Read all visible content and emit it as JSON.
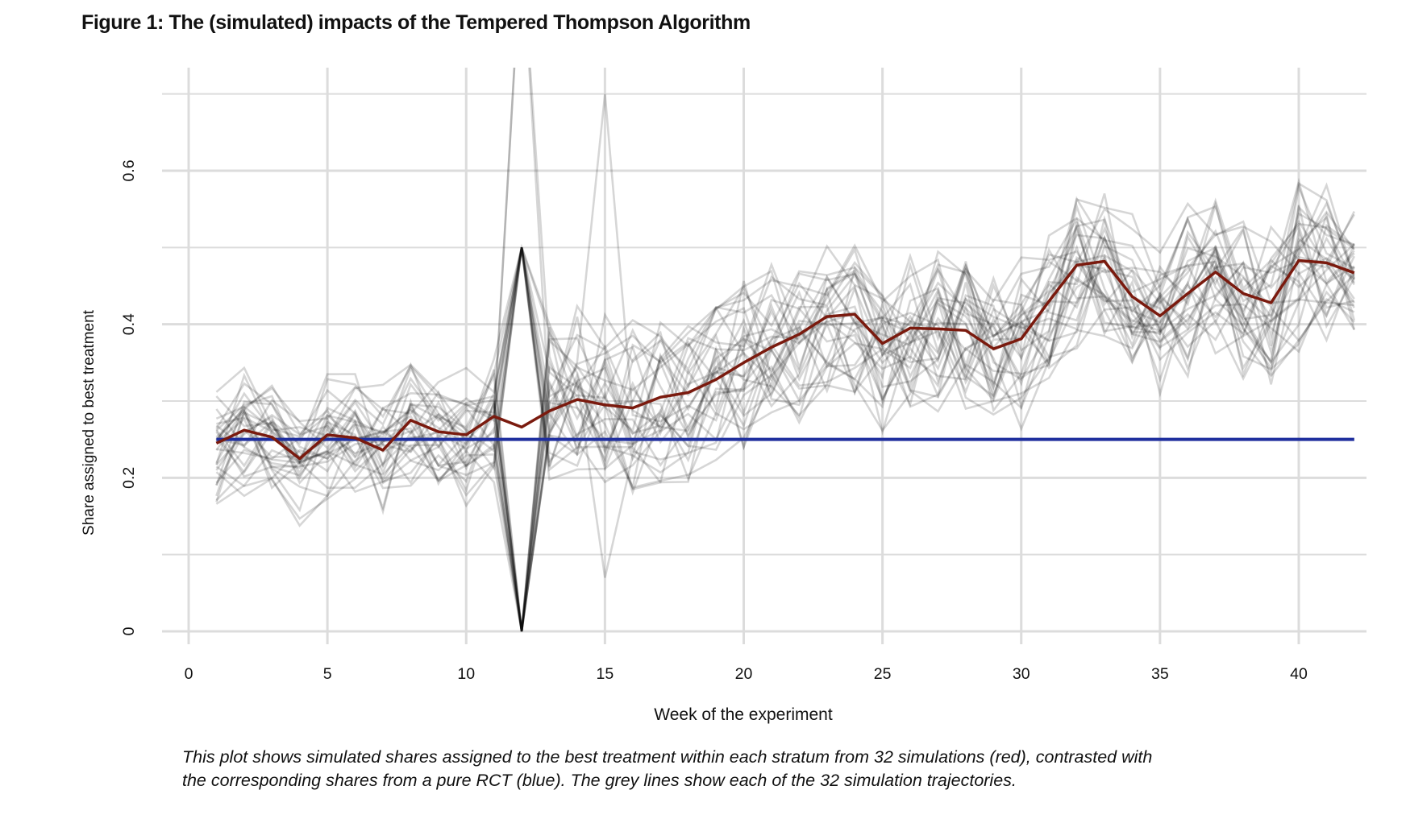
{
  "figure": {
    "title": "Figure 1: The (simulated) impacts of the Tempered Thompson Algorithm",
    "caption_lines": [
      "This plot shows simulated shares assigned to the best treatment within each stratum from 32 simulations (red), contrasted with",
      "the corresponding shares from a pure RCT (blue). The grey lines show each of the 32 simulation trajectories."
    ]
  },
  "chart_data": {
    "type": "line",
    "title": "Figure 1: The (simulated) impacts of the Tempered Thompson Algorithm",
    "xlabel": "Week of the experiment",
    "ylabel": "Share assigned to best treatment",
    "xlim": [
      -1,
      43.5
    ],
    "ylim": [
      -0.01,
      0.735
    ],
    "x_ticks": [
      0,
      5,
      10,
      15,
      20,
      25,
      30,
      35,
      40
    ],
    "x_tick_labels": [
      "0",
      "5",
      "10",
      "15",
      "20",
      "25",
      "30",
      "35",
      "40"
    ],
    "y_ticks": [
      0,
      0.2,
      0.4,
      0.6
    ],
    "y_tick_labels": [
      "0",
      "0.2",
      "0.4",
      "0.6"
    ],
    "y_minor_gridlines": [
      0.1,
      0.3,
      0.5,
      0.7
    ],
    "grid": true,
    "legend": "none",
    "colors": {
      "mean": "#7a1a0e",
      "rct": "#1f2f9e",
      "trajectory": "#000000",
      "grid": "#dcdcdc"
    },
    "x": [
      1,
      2,
      3,
      4,
      5,
      6,
      7,
      8,
      9,
      10,
      11,
      12,
      13,
      14,
      15,
      16,
      17,
      18,
      19,
      20,
      21,
      22,
      23,
      24,
      25,
      26,
      27,
      28,
      29,
      30,
      31,
      32,
      33,
      34,
      35,
      36,
      37,
      38,
      39,
      40,
      41,
      42
    ],
    "series": [
      {
        "name": "Mean of 32 simulations (red)",
        "values": [
          0.245,
          0.262,
          0.253,
          0.225,
          0.256,
          0.252,
          0.236,
          0.275,
          0.26,
          0.256,
          0.28,
          0.266,
          0.287,
          0.302,
          0.295,
          0.291,
          0.305,
          0.311,
          0.328,
          0.35,
          0.37,
          0.387,
          0.41,
          0.413,
          0.375,
          0.395,
          0.394,
          0.392,
          0.368,
          0.381,
          0.43,
          0.477,
          0.482,
          0.436,
          0.411,
          0.44,
          0.468,
          0.44,
          0.428,
          0.483,
          0.48,
          0.467
        ]
      },
      {
        "name": "Pure RCT (blue)",
        "values": [
          0.25,
          0.25,
          0.25,
          0.25,
          0.25,
          0.25,
          0.25,
          0.25,
          0.25,
          0.25,
          0.25,
          0.25,
          0.25,
          0.25,
          0.25,
          0.25,
          0.25,
          0.25,
          0.25,
          0.25,
          0.25,
          0.25,
          0.25,
          0.25,
          0.25,
          0.25,
          0.25,
          0.25,
          0.25,
          0.25,
          0.25,
          0.25,
          0.25,
          0.25,
          0.25,
          0.25,
          0.25,
          0.25,
          0.25,
          0.25,
          0.25,
          0.25
        ]
      }
    ],
    "trajectories_count": 32,
    "trajectories_note": "Grey lines: 32 individual simulation trajectories (approximate)",
    "week12_split": {
      "high": 0.5,
      "low": 0.0,
      "outliers_above_ylim": 2
    }
  }
}
